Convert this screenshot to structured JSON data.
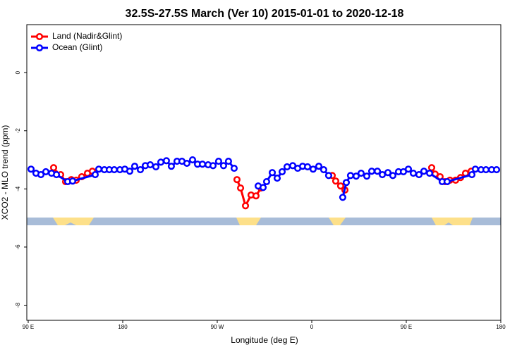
{
  "chart_data": {
    "type": "line",
    "title": "32.5S-27.5S March (Ver 10)   2015-01-01 to 2020-12-18",
    "xlabel": "Longitude (deg E)",
    "ylabel": "XCO2 - MLO trend (ppm)",
    "xlim": [
      88.66,
      540
    ],
    "ylim": [
      -8.52,
      1.65
    ],
    "xticks": [
      {
        "value": 90,
        "label": "90 E"
      },
      180,
      {
        "value": 270,
        "label": "90 W"
      },
      {
        "value": 360,
        "label": "0"
      },
      {
        "value": 450,
        "label": "90 E"
      },
      {
        "value": 540,
        "label": "180"
      }
    ],
    "yticks": [
      0,
      -2,
      -4,
      -6,
      -8
    ],
    "legend": "top-left",
    "series": [
      {
        "name": "Land (Nadir&Glint)",
        "color": "#ff0000",
        "x": [
          114.2,
          115.5,
          120.9,
          125.6,
          131.0,
          135.7,
          141.0,
          146.4,
          151.1,
          null,
          288.8,
          292.2,
          296.9,
          302.2,
          306.9,
          311.6,
          null,
          379.5,
          382.8,
          387.5,
          391.6,
          null,
          474.2,
          477.5,
          482.2,
          486.9,
          491.6,
          497.0,
          501.7,
          506.4,
          511.8
        ],
        "values": [
          -3.27,
          -3.46,
          -3.51,
          -3.75,
          -3.68,
          -3.7,
          -3.58,
          -3.46,
          -3.39,
          null,
          -3.68,
          -3.97,
          -4.58,
          -4.21,
          -4.24,
          -3.97,
          null,
          -3.54,
          -3.73,
          -3.9,
          -4.04,
          null,
          -3.27,
          -3.49,
          -3.58,
          -3.75,
          -3.7,
          -3.7,
          -3.61,
          -3.46,
          -3.39
        ]
      },
      {
        "name": "Ocean (Glint)",
        "color": "#0000ff",
        "x": [
          92.7,
          97.4,
          102.1,
          106.8,
          112.2,
          116.9,
          127.6,
          132.3,
          153.8,
          157.2,
          162.5,
          167.2,
          171.9,
          177.3,
          182.0,
          186.7,
          191.4,
          196.8,
          201.5,
          206.2,
          211.6,
          216.3,
          221.6,
          226.3,
          231.7,
          236.4,
          241.1,
          246.5,
          251.2,
          255.9,
          261.3,
          266.0,
          271.3,
          276.0,
          280.7,
          286.1,
          null,
          309.0,
          313.7,
          317.0,
          322.4,
          327.1,
          331.8,
          336.5,
          341.9,
          346.6,
          351.3,
          356.0,
          361.3,
          366.7,
          371.4,
          376.1,
          null,
          389.5,
          392.9,
          396.9,
          402.3,
          407.0,
          412.4,
          417.1,
          422.5,
          427.2,
          432.5,
          437.2,
          442.6,
          447.3,
          452.0,
          456.7,
          462.1,
          466.8,
          472.2,
          484.2,
          488.9,
          512.5,
          515.8,
          521.2,
          525.9,
          531.3,
          536.0
        ],
        "values": [
          -3.32,
          -3.46,
          -3.51,
          -3.41,
          -3.46,
          -3.51,
          -3.75,
          -3.73,
          -3.51,
          -3.32,
          -3.34,
          -3.34,
          -3.34,
          -3.34,
          -3.32,
          -3.39,
          -3.22,
          -3.34,
          -3.2,
          -3.17,
          -3.24,
          -3.08,
          -3.03,
          -3.22,
          -3.05,
          -3.05,
          -3.12,
          -3.0,
          -3.15,
          -3.15,
          -3.17,
          -3.2,
          -3.05,
          -3.2,
          -3.05,
          -3.29,
          null,
          -3.9,
          -3.95,
          -3.75,
          -3.44,
          -3.63,
          -3.41,
          -3.24,
          -3.2,
          -3.29,
          -3.22,
          -3.24,
          -3.32,
          -3.22,
          -3.34,
          -3.54,
          null,
          -4.29,
          -3.78,
          -3.54,
          -3.56,
          -3.46,
          -3.56,
          -3.39,
          -3.39,
          -3.51,
          -3.44,
          -3.54,
          -3.41,
          -3.41,
          -3.32,
          -3.46,
          -3.51,
          -3.39,
          -3.46,
          -3.75,
          -3.75,
          -3.51,
          -3.32,
          -3.34,
          -3.34,
          -3.34,
          -3.34
        ]
      }
    ]
  }
}
